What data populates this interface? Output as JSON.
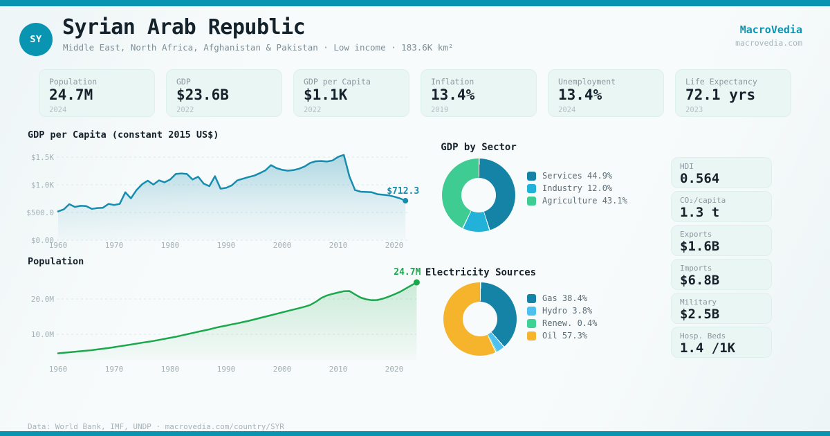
{
  "header": {
    "country_code": "SY",
    "title": "Syrian Arab Republic",
    "subtitle": "Middle East, North Africa, Afghanistan & Pakistan · Low income · 183.6K km²",
    "brand": "MacroVedia",
    "brand_url": "macrovedia.com"
  },
  "stats": [
    {
      "label": "Population",
      "value": "24.7M",
      "year": "2024"
    },
    {
      "label": "GDP",
      "value": "$23.6B",
      "year": "2022"
    },
    {
      "label": "GDP per Capita",
      "value": "$1.1K",
      "year": "2022"
    },
    {
      "label": "Inflation",
      "value": "13.4%",
      "year": "2019"
    },
    {
      "label": "Unemployment",
      "value": "13.4%",
      "year": "2024"
    },
    {
      "label": "Life Expectancy",
      "value": "72.1 yrs",
      "year": "2023"
    }
  ],
  "side_cards": [
    {
      "label": "HDI",
      "value": "0.564"
    },
    {
      "label": "CO₂/capita",
      "value": "1.3 t"
    },
    {
      "label": "Exports",
      "value": "$1.6B"
    },
    {
      "label": "Imports",
      "value": "$6.8B"
    },
    {
      "label": "Military",
      "value": "$2.5B"
    },
    {
      "label": "Hosp. Beds",
      "value": "1.4 /1K"
    }
  ],
  "footer": {
    "text": "Data: World Bank, IMF, UNDP · macrovedia.com/country/SYR"
  },
  "colors": {
    "brand": "#0995b2",
    "gdp_line": "#168cae",
    "pop_line": "#1ba84d",
    "card_bg": "#eaf6f3"
  },
  "chart_data": [
    {
      "id": "gdp_per_capita",
      "type": "area",
      "title": "GDP per Capita (constant 2015 US$)",
      "x_start": 1960,
      "x_step": 1,
      "values": [
        520,
        555,
        650,
        600,
        620,
        615,
        565,
        580,
        585,
        655,
        635,
        655,
        865,
        755,
        905,
        1010,
        1075,
        1005,
        1080,
        1045,
        1095,
        1195,
        1205,
        1195,
        1095,
        1145,
        1020,
        975,
        1155,
        930,
        945,
        990,
        1080,
        1110,
        1140,
        1165,
        1210,
        1260,
        1355,
        1300,
        1270,
        1255,
        1265,
        1290,
        1330,
        1395,
        1425,
        1430,
        1420,
        1440,
        1505,
        1540,
        1150,
        905,
        875,
        870,
        865,
        830,
        820,
        810,
        785,
        755,
        712.3
      ],
      "end_label": "$712.3",
      "x_ticks": [
        1960,
        1970,
        1980,
        1990,
        2000,
        2010,
        2020
      ],
      "y_ticks": [
        {
          "v": 1500,
          "label": "$1.5K"
        },
        {
          "v": 1000,
          "label": "$1.0K"
        },
        {
          "v": 500,
          "label": "$500.0"
        },
        {
          "v": 0,
          "label": "$0.00"
        }
      ],
      "ylim": [
        0,
        1600
      ],
      "color": "#168cae"
    },
    {
      "id": "population",
      "type": "area",
      "title": "Population",
      "x_start": 1960,
      "x_step": 1,
      "values": [
        4.6,
        4.75,
        4.9,
        5.05,
        5.2,
        5.35,
        5.5,
        5.7,
        5.9,
        6.1,
        6.35,
        6.6,
        6.85,
        7.1,
        7.35,
        7.6,
        7.85,
        8.1,
        8.4,
        8.7,
        9.0,
        9.3,
        9.65,
        10.0,
        10.35,
        10.7,
        11.05,
        11.4,
        11.8,
        12.15,
        12.45,
        12.8,
        13.1,
        13.45,
        13.8,
        14.2,
        14.6,
        15.0,
        15.4,
        15.8,
        16.2,
        16.6,
        17.0,
        17.4,
        17.8,
        18.3,
        19.2,
        20.3,
        21.0,
        21.45,
        21.85,
        22.2,
        22.25,
        21.3,
        20.4,
        19.9,
        19.65,
        19.7,
        20.1,
        20.65,
        21.3,
        22.0,
        22.9,
        23.8,
        24.7
      ],
      "end_label": "24.7M",
      "x_ticks": [
        1960,
        1970,
        1980,
        1990,
        2000,
        2010,
        2020
      ],
      "y_ticks": [
        {
          "v": 20,
          "label": "20.0M"
        },
        {
          "v": 10,
          "label": "10.0M"
        }
      ],
      "ylim": [
        0,
        28
      ],
      "unit": "millions",
      "color": "#1ba84d"
    },
    {
      "id": "gdp_by_sector",
      "type": "pie",
      "title": "GDP by Sector",
      "slices": [
        {
          "label": "Services",
          "value": 44.9,
          "display": "Services 44.9%",
          "color": "#1583a6"
        },
        {
          "label": "Industry",
          "value": 12.0,
          "display": "Industry 12.0%",
          "color": "#22b1d8"
        },
        {
          "label": "Agriculture",
          "value": 43.1,
          "display": "Agriculture 43.1%",
          "color": "#3ecc92"
        }
      ]
    },
    {
      "id": "electricity_sources",
      "type": "pie",
      "title": "Electricity Sources",
      "slices": [
        {
          "label": "Gas",
          "value": 38.4,
          "display": "Gas 38.4%",
          "color": "#1583a6"
        },
        {
          "label": "Hydro",
          "value": 3.8,
          "display": "Hydro 3.8%",
          "color": "#4ec1f0"
        },
        {
          "label": "Renew.",
          "value": 0.4,
          "display": "Renew. 0.4%",
          "color": "#3ed395"
        },
        {
          "label": "Oil",
          "value": 57.3,
          "display": "Oil 57.3%",
          "color": "#f6b42c"
        }
      ]
    }
  ]
}
